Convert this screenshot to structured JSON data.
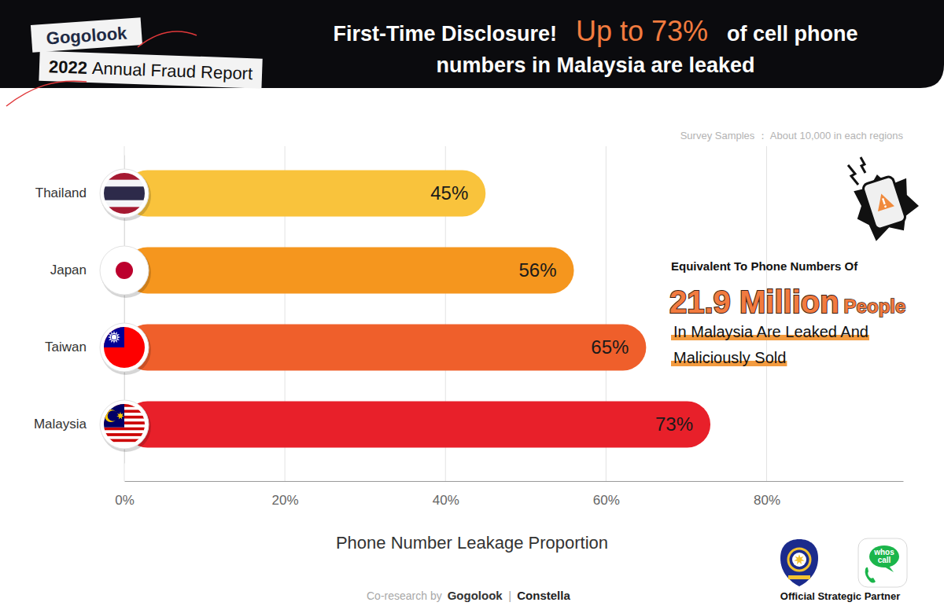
{
  "header": {
    "brand": "Gogolook",
    "year": "2022",
    "report": "Annual Fraud Report"
  },
  "chart_data": {
    "type": "bar",
    "orientation": "horizontal",
    "title": [
      "First-Time Disclosure!",
      "Up to 73%",
      "of cell phone",
      "numbers in Malaysia are leaked"
    ],
    "note": "Survey Samples ： About 10,000 in each regions",
    "categories": [
      "Thailand",
      "Japan",
      "Taiwan",
      "Malaysia"
    ],
    "values": [
      45,
      56,
      65,
      73
    ],
    "value_labels": [
      "45%",
      "56%",
      "65%",
      "73%"
    ],
    "colors": [
      "#f9c33c",
      "#f5961e",
      "#ef5f2b",
      "#e8202a"
    ],
    "data_labels": true,
    "xlim": [
      0,
      97
    ],
    "xticks": [
      {
        "value": 0,
        "label": "0%"
      },
      {
        "value": 20,
        "label": "20%"
      },
      {
        "value": 40,
        "label": "40%"
      },
      {
        "value": 60,
        "label": "60%"
      },
      {
        "value": 80,
        "label": "80%"
      }
    ],
    "xlabel": "Phone Number Leakage Proportion",
    "grid": true,
    "annotations": [
      "Equivalent To Phone Numbers Of",
      "21.9 Million",
      "People",
      "In Malaysia Are Leaked And",
      "Maliciously Sold"
    ]
  },
  "footer": {
    "coresearch": "Co-research by",
    "partners": [
      "Gogolook",
      "|",
      "Constella"
    ],
    "partner_label": "Official Strategic Partner",
    "app_logo": [
      "whos",
      "call"
    ]
  }
}
